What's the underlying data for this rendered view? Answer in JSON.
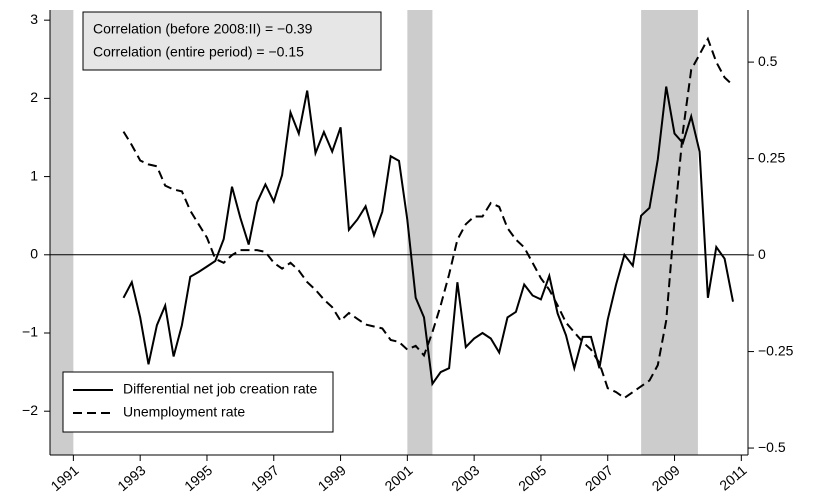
{
  "chart_data": {
    "type": "line",
    "annotations": [
      "Correlation (before 2008:II) = −0.39",
      "Correlation (entire period) = −0.15"
    ],
    "x": [
      1992.5,
      1992.75,
      1993,
      1993.25,
      1993.5,
      1993.75,
      1994,
      1994.25,
      1994.5,
      1994.75,
      1995,
      1995.25,
      1995.5,
      1995.75,
      1996,
      1996.25,
      1996.5,
      1996.75,
      1997,
      1997.25,
      1997.5,
      1997.75,
      1998,
      1998.25,
      1998.5,
      1998.75,
      1999,
      1999.25,
      1999.5,
      1999.75,
      2000,
      2000.25,
      2000.5,
      2000.75,
      2001,
      2001.25,
      2001.5,
      2001.75,
      2002,
      2002.25,
      2002.5,
      2002.75,
      2003,
      2003.25,
      2003.5,
      2003.75,
      2004,
      2004.25,
      2004.5,
      2004.75,
      2005,
      2005.25,
      2005.5,
      2005.75,
      2006,
      2006.25,
      2006.5,
      2006.75,
      2007,
      2007.25,
      2007.5,
      2007.75,
      2008,
      2008.25,
      2008.5,
      2008.75,
      2009,
      2009.25,
      2009.5,
      2009.75,
      2010,
      2010.25,
      2010.5,
      2010.75
    ],
    "series": [
      {
        "name": "Differential net job creation rate",
        "color": "#000000",
        "dash": "solid",
        "values": [
          -0.55,
          -0.35,
          -0.8,
          -1.4,
          -0.9,
          -0.65,
          -1.3,
          -0.9,
          -0.28,
          -0.22,
          -0.15,
          -0.08,
          0.2,
          0.87,
          0.47,
          0.13,
          0.67,
          0.9,
          0.68,
          1.02,
          1.82,
          1.55,
          2.1,
          1.3,
          1.57,
          1.32,
          1.63,
          0.32,
          0.45,
          0.62,
          0.25,
          0.55,
          1.26,
          1.2,
          0.45,
          -0.55,
          -0.8,
          -1.65,
          -1.5,
          -1.45,
          -0.35,
          -1.18,
          -1.07,
          -1.0,
          -1.07,
          -1.25,
          -0.8,
          -0.73,
          -0.38,
          -0.52,
          -0.57,
          -0.27,
          -0.75,
          -1.03,
          -1.45,
          -1.05,
          -1.05,
          -1.45,
          -0.83,
          -0.38,
          0.0,
          -0.14,
          0.5,
          0.6,
          1.22,
          2.15,
          1.55,
          1.43,
          1.77,
          1.32,
          -0.55,
          0.1,
          -0.05,
          -0.6
        ]
      },
      {
        "name": "Unemployment rate",
        "color": "#000000",
        "dash": "dashed",
        "axis": "y2",
        "values": [
          0.32,
          0.285,
          0.245,
          0.235,
          0.23,
          0.18,
          0.17,
          0.165,
          0.115,
          0.08,
          0.045,
          -0.01,
          -0.02,
          0.0,
          0.013,
          0.013,
          0.013,
          0.008,
          -0.02,
          -0.035,
          -0.02,
          -0.04,
          -0.07,
          -0.09,
          -0.115,
          -0.135,
          -0.17,
          -0.15,
          -0.165,
          -0.18,
          -0.185,
          -0.19,
          -0.22,
          -0.225,
          -0.245,
          -0.235,
          -0.26,
          -0.2,
          -0.13,
          -0.05,
          0.04,
          0.08,
          0.1,
          0.1,
          0.135,
          0.125,
          0.07,
          0.04,
          0.02,
          -0.02,
          -0.06,
          -0.09,
          -0.13,
          -0.175,
          -0.2,
          -0.225,
          -0.245,
          -0.28,
          -0.345,
          -0.355,
          -0.37,
          -0.355,
          -0.34,
          -0.325,
          -0.285,
          -0.17,
          0.09,
          0.32,
          0.48,
          0.52,
          0.56,
          0.5,
          0.46,
          0.44
        ]
      }
    ],
    "xlim": [
      1990.3,
      2011.2
    ],
    "xticks": [
      1991,
      1993,
      1995,
      1997,
      1999,
      2001,
      2003,
      2005,
      2007,
      2009,
      2011
    ],
    "ylim": [
      -2.56,
      3.13
    ],
    "yticks": [
      {
        "value": -2,
        "label": "−2"
      },
      {
        "value": -1,
        "label": "−1"
      },
      0,
      1,
      2,
      3
    ],
    "y2lim": [
      -0.518,
      0.635
    ],
    "y2ticks": [
      {
        "value": -0.5,
        "label": "−0.5"
      },
      {
        "value": -0.25,
        "label": "−0.25"
      },
      0,
      0.25,
      0.5
    ],
    "zero_line": true,
    "shaded_periods": [
      [
        1990.3,
        1991.0
      ],
      [
        2001.0,
        2001.75
      ],
      [
        2008.0,
        2009.7
      ]
    ],
    "shade_color": "#cccccc",
    "legend": "lower left"
  }
}
